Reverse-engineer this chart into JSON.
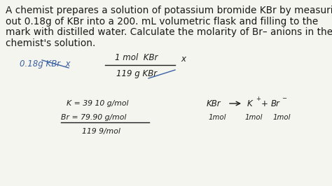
{
  "background_color": "#f5f5f0",
  "para_lines": [
    "A chemist prepares a solution of potassium bromide KBr by measuring",
    "out 0.18g of KBr into a 200. mL volumetric flask and filling to the",
    "mark with distilled water. Calculate the molarity of Br– anions in the",
    "chemist's solution."
  ],
  "para_fontsize": 9.8,
  "para_color": "#1a1a1a",
  "hw_dark": "#1c1c1c",
  "hw_blue": "#3a5fa0",
  "hw_fontsize": 8.5,
  "hw_small_fontsize": 7.8
}
